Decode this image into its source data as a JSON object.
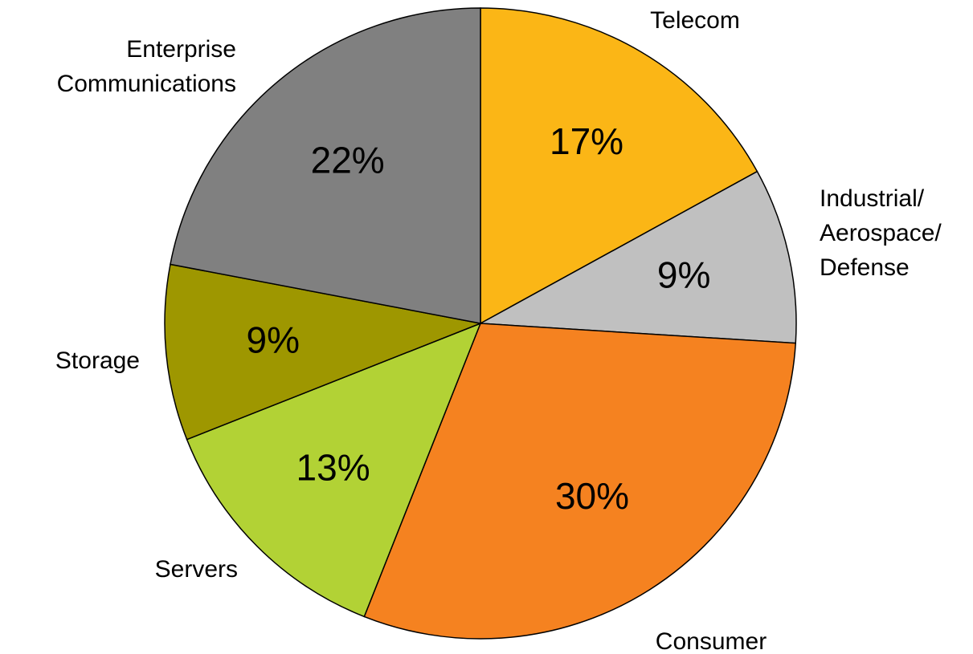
{
  "chart_data": {
    "type": "pie",
    "categories": [
      "Telecom",
      "Industrial/\nAerospace/\nDefense",
      "Consumer",
      "Servers",
      "Storage",
      "Enterprise\nCommunications"
    ],
    "values": [
      17,
      9,
      30,
      13,
      9,
      22
    ],
    "value_labels": [
      "17%",
      "9%",
      "30%",
      "13%",
      "9%",
      "22%"
    ],
    "colors": [
      "#fbb616",
      "#c0c0c0",
      "#f58220",
      "#b2d235",
      "#9e9700",
      "#808080"
    ]
  }
}
